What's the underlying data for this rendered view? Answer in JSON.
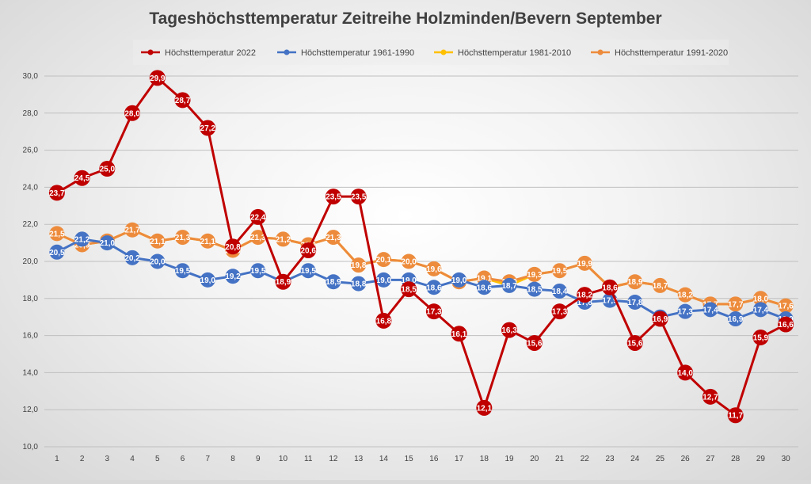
{
  "chart_data": {
    "type": "line",
    "title": "Tageshöchsttemperatur Zeitreihe Holzminden/Bevern September",
    "xlabel": "",
    "ylabel": "",
    "ylim": [
      10,
      30
    ],
    "yticks": [
      "10,0",
      "12,0",
      "14,0",
      "16,0",
      "18,0",
      "20,0",
      "22,0",
      "24,0",
      "26,0",
      "28,0",
      "30,0"
    ],
    "ytick_values": [
      10,
      12,
      14,
      16,
      18,
      20,
      22,
      24,
      26,
      28,
      30
    ],
    "categories": [
      "1",
      "2",
      "3",
      "4",
      "5",
      "6",
      "7",
      "8",
      "9",
      "10",
      "11",
      "12",
      "13",
      "14",
      "15",
      "16",
      "17",
      "18",
      "19",
      "20",
      "21",
      "22",
      "23",
      "24",
      "25",
      "26",
      "27",
      "28",
      "29",
      "30"
    ],
    "legend_position": "top",
    "grid": true,
    "series": [
      {
        "name": "Höchsttemperatur 1981-2010",
        "color": "#ffc000",
        "values": [
          21.5,
          20.9,
          21.1,
          21.7,
          21.1,
          21.3,
          21.1,
          20.6,
          21.3,
          21.2,
          20.9,
          21.3,
          19.8,
          20.1,
          20.0,
          19.6,
          18.9,
          19.1,
          18.7,
          19.3,
          19.5,
          19.9,
          18.6,
          18.9,
          18.7,
          18.2,
          17.7,
          17.7,
          18.0,
          17.6
        ],
        "labels": [
          "",
          "",
          "",
          "",
          "",
          "",
          "",
          "",
          "",
          "",
          "",
          "",
          "",
          "",
          "",
          "",
          "",
          "",
          "",
          "",
          "",
          "",
          "",
          "",
          "",
          "",
          "",
          "",
          "",
          ""
        ]
      },
      {
        "name": "Höchsttemperatur 1991-2020",
        "color": "#ed8b3c",
        "values": [
          21.5,
          20.9,
          21.1,
          21.7,
          21.1,
          21.3,
          21.1,
          20.6,
          21.3,
          21.2,
          20.9,
          21.3,
          19.8,
          20.1,
          20.0,
          19.6,
          18.9,
          19.1,
          18.9,
          19.3,
          19.5,
          19.9,
          18.6,
          18.9,
          18.7,
          18.2,
          17.7,
          17.7,
          18.0,
          17.6
        ],
        "labels": [
          "21,5",
          "20,9",
          "21,1",
          "21,7",
          "21,1",
          "21,3",
          "21,1",
          "20,6",
          "21,3",
          "21,2",
          "20,9",
          "21,3",
          "19,8",
          "20,1",
          "20,0",
          "19,6",
          "18,9",
          "19,1",
          "18,9",
          "19,3",
          "19,5",
          "19,9",
          "18,6",
          "18,9",
          "18,7",
          "18,2",
          "17,7",
          "17,7",
          "18,0",
          "17,6"
        ]
      },
      {
        "name": "Höchsttemperatur 1961-1990",
        "color": "#4472c4",
        "values": [
          20.5,
          21.2,
          21.0,
          20.2,
          20.0,
          19.5,
          19.0,
          19.2,
          19.5,
          18.9,
          19.5,
          18.9,
          18.8,
          19.0,
          19.0,
          18.6,
          19.0,
          18.6,
          18.7,
          18.5,
          18.4,
          17.8,
          17.9,
          17.8,
          17.0,
          17.3,
          17.4,
          16.9,
          17.4,
          16.9
        ],
        "labels": [
          "20,5",
          "21,2",
          "21,0",
          "20,2",
          "20,0",
          "19,5",
          "19,0",
          "19,2",
          "19,5",
          "18,9",
          "19,5",
          "18,9",
          "18,8",
          "19,0",
          "19,0",
          "18,6",
          "19,0",
          "18,6",
          "18,7",
          "18,5",
          "18,4",
          "17,8",
          "17,9",
          "17,8",
          "17,0",
          "17,3",
          "17,4",
          "16,9",
          "17,4",
          "16,9"
        ]
      },
      {
        "name": "Höchsttemperatur 2022",
        "color": "#c00000",
        "values": [
          23.7,
          24.5,
          25.0,
          28.0,
          29.9,
          28.7,
          27.2,
          20.8,
          22.4,
          18.9,
          20.6,
          23.5,
          23.5,
          16.8,
          18.5,
          17.3,
          16.1,
          12.1,
          16.3,
          15.6,
          17.3,
          18.2,
          18.6,
          15.6,
          16.9,
          14.0,
          12.7,
          11.7,
          15.9,
          16.6
        ],
        "labels": [
          "23,7",
          "24,5",
          "25,0",
          "28,0",
          "29,9",
          "28,7",
          "27,2",
          "20,8",
          "22,4",
          "18,9",
          "20,6",
          "23,5",
          "23,5",
          "16,8",
          "18,5",
          "17,3",
          "16,1",
          "12,1",
          "16,3",
          "15,6",
          "17,3",
          "18,2",
          "18,6",
          "15,6",
          "16,9",
          "14,0",
          "12,7",
          "11,7",
          "15,9",
          "16,6"
        ]
      }
    ],
    "legend_order": [
      "Höchsttemperatur 2022",
      "Höchsttemperatur 1961-1990",
      "Höchsttemperatur 1981-2010",
      "Höchsttemperatur 1991-2020"
    ]
  }
}
